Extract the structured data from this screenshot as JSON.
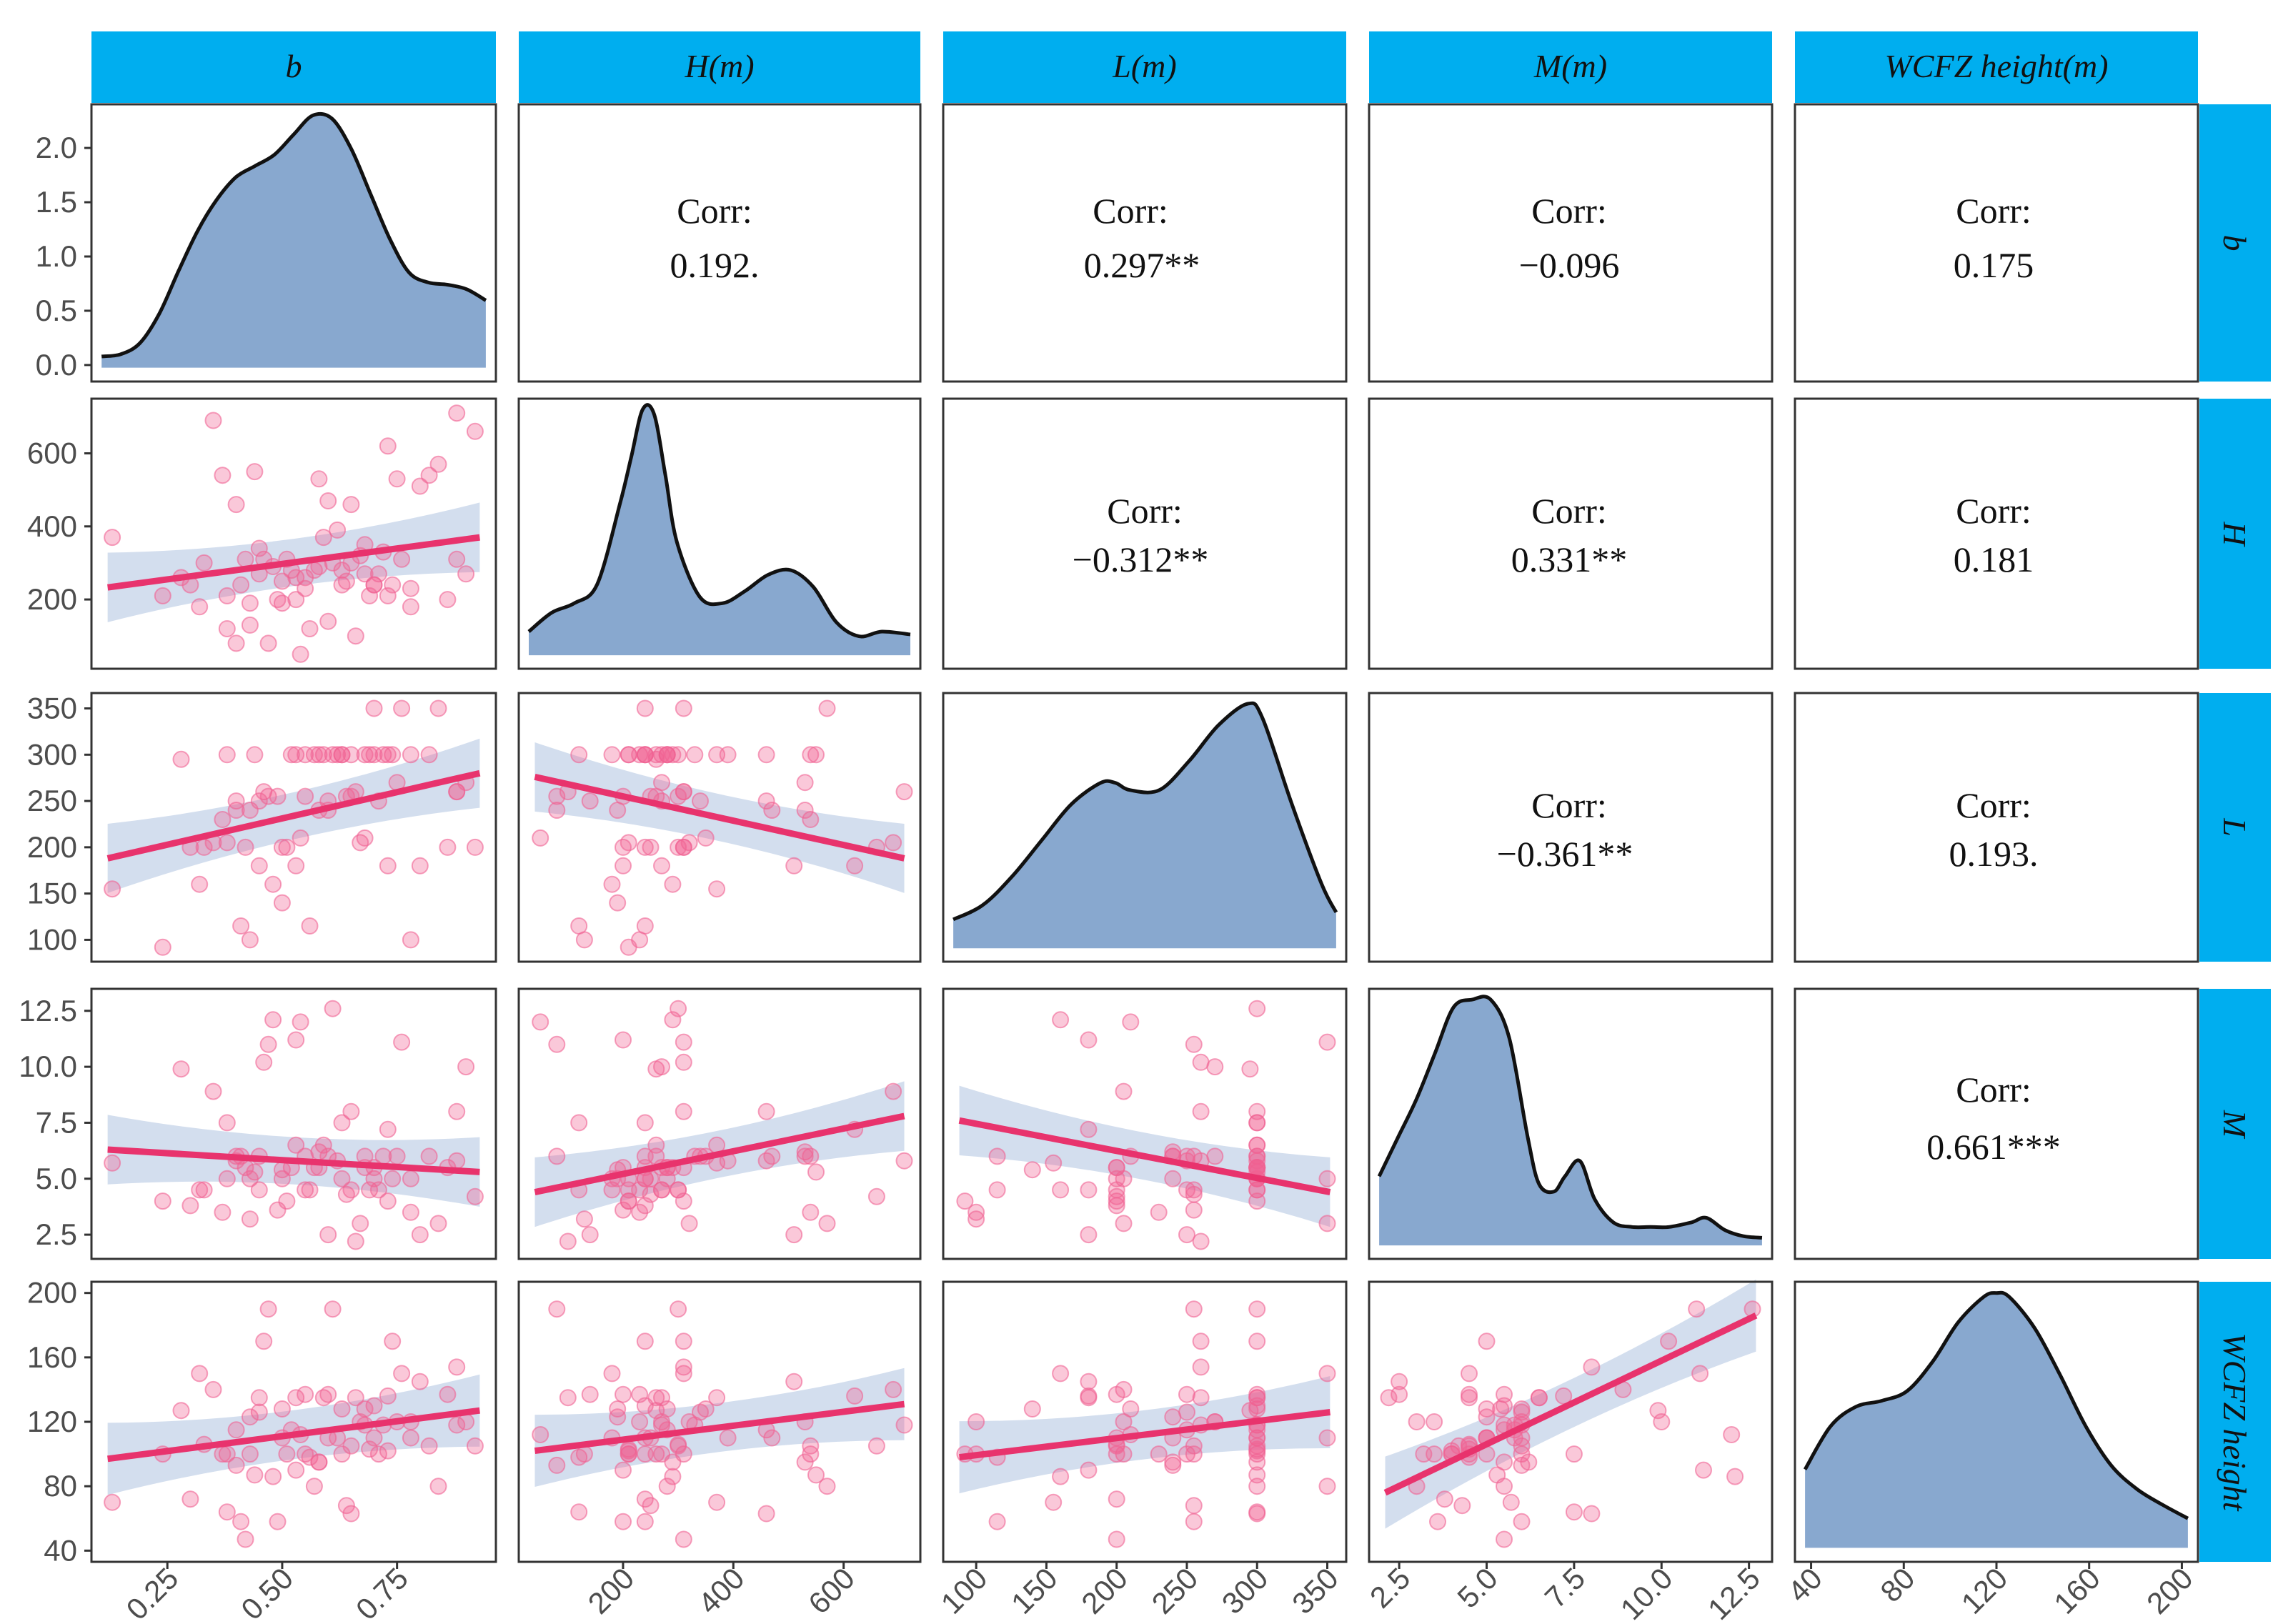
{
  "colors": {
    "strip": "#00aeef",
    "density_fill": "#88a8cf",
    "density_stroke": "#111111",
    "point": "#f06292",
    "line": "#e8336d",
    "ribbon": "#c8d6ea",
    "panel_border": "#333333"
  },
  "chart_data": {
    "type": "scatter",
    "layout": "pairs-plot (5 x 5 matrix)",
    "variables": [
      "b",
      "H",
      "L",
      "M",
      "WCFZ height"
    ],
    "column_labels": [
      "b",
      "H(m)",
      "L(m)",
      "M(m)",
      "WCFZ height(m)"
    ],
    "row_labels": [
      "b",
      "H",
      "L",
      "M",
      "WCFZ height"
    ],
    "corr_label": "Corr:",
    "correlations": [
      {
        "row": 0,
        "col": 1,
        "value": "0.192."
      },
      {
        "row": 0,
        "col": 2,
        "value": "0.297**"
      },
      {
        "row": 0,
        "col": 3,
        "value": "−0.096"
      },
      {
        "row": 0,
        "col": 4,
        "value": "0.175"
      },
      {
        "row": 1,
        "col": 2,
        "value": "−0.312**"
      },
      {
        "row": 1,
        "col": 3,
        "value": "0.331**"
      },
      {
        "row": 1,
        "col": 4,
        "value": "0.181"
      },
      {
        "row": 2,
        "col": 3,
        "value": "−0.361**"
      },
      {
        "row": 2,
        "col": 4,
        "value": "0.193."
      },
      {
        "row": 3,
        "col": 4,
        "value": "0.661***"
      }
    ],
    "axes": {
      "x": [
        {
          "range": [
            0.12,
            0.93
          ],
          "ticks": [
            0.25,
            0.5,
            0.75
          ],
          "tick_labels": [
            "0.25",
            "0.50",
            "0.75"
          ]
        },
        {
          "range": [
            40,
            710
          ],
          "ticks": [
            200,
            400,
            600
          ],
          "tick_labels": [
            "200",
            "400",
            "600"
          ]
        },
        {
          "range": [
            88,
            352
          ],
          "ticks": [
            100,
            150,
            200,
            250,
            300,
            350
          ],
          "tick_labels": [
            "100",
            "150",
            "200",
            "250",
            "300",
            "350"
          ]
        },
        {
          "range": [
            2.1,
            12.7
          ],
          "ticks": [
            2.5,
            5.0,
            7.5,
            10.0,
            12.5
          ],
          "tick_labels": [
            "2.5",
            "5.0",
            "7.5",
            "10.0",
            "12.5"
          ]
        },
        {
          "range": [
            40,
            200
          ],
          "ticks": [
            40,
            80,
            120,
            160,
            200
          ],
          "tick_labels": [
            "40",
            "80",
            "120",
            "160",
            "200"
          ]
        }
      ],
      "y": [
        {
          "range": [
            -0.05,
            2.3
          ],
          "ticks": [
            0.0,
            0.5,
            1.0,
            1.5,
            2.0
          ],
          "tick_labels": [
            "0.0",
            "0.5",
            "1.0",
            "1.5",
            "2.0"
          ]
        },
        {
          "range": [
            40,
            720
          ],
          "ticks": [
            200,
            400,
            600
          ],
          "tick_labels": [
            "200",
            "400",
            "600"
          ]
        },
        {
          "range": [
            88,
            355
          ],
          "ticks": [
            100,
            150,
            200,
            250,
            300,
            350
          ],
          "tick_labels": [
            "100",
            "150",
            "200",
            "250",
            "300",
            "350"
          ]
        },
        {
          "range": [
            1.9,
            13.0
          ],
          "ticks": [
            2.5,
            5.0,
            7.5,
            10.0,
            12.5
          ],
          "tick_labels": [
            "2.5",
            "5.0",
            "7.5",
            "10.0",
            "12.5"
          ]
        },
        {
          "range": [
            40,
            200
          ],
          "ticks": [
            40,
            80,
            120,
            160,
            200
          ],
          "tick_labels": [
            "40",
            "80",
            "120",
            "160",
            "200"
          ]
        }
      ]
    },
    "density": [
      {
        "x": [
          0.13,
          0.17,
          0.21,
          0.25,
          0.29,
          0.33,
          0.37,
          0.41,
          0.45,
          0.49,
          0.53,
          0.57,
          0.61,
          0.65,
          0.69,
          0.73,
          0.77,
          0.81,
          0.85,
          0.89,
          0.93
        ],
        "y": [
          0.1,
          0.12,
          0.22,
          0.48,
          0.86,
          1.22,
          1.5,
          1.7,
          1.8,
          1.9,
          2.08,
          2.25,
          2.22,
          1.95,
          1.55,
          1.15,
          0.85,
          0.76,
          0.74,
          0.7,
          0.6
        ]
      },
      {
        "x": [
          40,
          80,
          120,
          160,
          200,
          220,
          240,
          260,
          280,
          300,
          340,
          380,
          420,
          460,
          500,
          540,
          580,
          620,
          660,
          710
        ],
        "y": [
          0.25,
          0.45,
          0.55,
          0.75,
          1.6,
          2.1,
          2.6,
          2.55,
          1.9,
          1.2,
          0.62,
          0.55,
          0.68,
          0.85,
          0.9,
          0.72,
          0.35,
          0.2,
          0.25,
          0.22
        ]
      },
      {
        "x": [
          90,
          110,
          130,
          150,
          170,
          190,
          200,
          210,
          230,
          250,
          270,
          290,
          300,
          320,
          340,
          350
        ],
        "y": [
          0.2,
          0.3,
          0.5,
          0.75,
          1.0,
          1.15,
          1.15,
          1.1,
          1.1,
          1.3,
          1.55,
          1.7,
          1.6,
          1.0,
          0.45,
          0.25
        ]
      },
      {
        "x": [
          2.2,
          2.7,
          3.2,
          3.7,
          4.2,
          4.7,
          5.2,
          5.7,
          6.2,
          6.5,
          6.9,
          7.2,
          7.6,
          8.0,
          8.5,
          9.0,
          9.5,
          10.0,
          10.6,
          11.0,
          11.5,
          12.0,
          12.5
        ],
        "y": [
          0.45,
          0.7,
          0.95,
          1.25,
          1.55,
          1.6,
          1.6,
          1.35,
          0.7,
          0.4,
          0.35,
          0.45,
          0.55,
          0.3,
          0.15,
          0.12,
          0.12,
          0.12,
          0.15,
          0.18,
          0.1,
          0.06,
          0.05
        ]
      },
      {
        "x": [
          45,
          55,
          65,
          75,
          85,
          95,
          105,
          115,
          120,
          125,
          135,
          145,
          155,
          165,
          175,
          185,
          195
        ],
        "y": [
          0.4,
          0.62,
          0.72,
          0.75,
          0.8,
          0.95,
          1.15,
          1.28,
          1.3,
          1.28,
          1.12,
          0.88,
          0.62,
          0.42,
          0.3,
          0.22,
          0.15
        ]
      }
    ],
    "observations": {
      "b": [
        0.13,
        0.24,
        0.28,
        0.3,
        0.32,
        0.35,
        0.37,
        0.38,
        0.4,
        0.4,
        0.41,
        0.42,
        0.43,
        0.44,
        0.45,
        0.46,
        0.47,
        0.48,
        0.49,
        0.5,
        0.51,
        0.52,
        0.53,
        0.54,
        0.55,
        0.56,
        0.57,
        0.58,
        0.59,
        0.6,
        0.61,
        0.62,
        0.63,
        0.64,
        0.65,
        0.66,
        0.67,
        0.68,
        0.69,
        0.7,
        0.71,
        0.72,
        0.73,
        0.74,
        0.76,
        0.78,
        0.8,
        0.82,
        0.84,
        0.86,
        0.88,
        0.9,
        0.92,
        0.45,
        0.5,
        0.55,
        0.6,
        0.65,
        0.7,
        0.75,
        0.38,
        0.58,
        0.68,
        0.78,
        0.88,
        0.33,
        0.43,
        0.53,
        0.63,
        0.73
      ],
      "H": [
        370,
        210,
        260,
        240,
        180,
        690,
        540,
        120,
        460,
        80,
        240,
        310,
        130,
        550,
        270,
        310,
        80,
        290,
        200,
        190,
        310,
        280,
        200,
        50,
        260,
        120,
        280,
        530,
        370,
        140,
        300,
        390,
        240,
        250,
        460,
        100,
        320,
        270,
        210,
        240,
        270,
        330,
        620,
        240,
        310,
        230,
        510,
        540,
        570,
        200,
        310,
        270,
        660,
        340,
        250,
        230,
        470,
        300,
        240,
        530,
        210,
        290,
        350,
        180,
        710,
        300,
        190,
        260,
        280,
        210
      ],
      "L": [
        155,
        92,
        295,
        200,
        160,
        205,
        230,
        300,
        250,
        240,
        115,
        200,
        100,
        300,
        180,
        260,
        255,
        160,
        255,
        140,
        200,
        300,
        180,
        210,
        255,
        115,
        300,
        240,
        300,
        250,
        300,
        300,
        300,
        255,
        300,
        260,
        205,
        300,
        300,
        350,
        250,
        300,
        180,
        300,
        350,
        100,
        180,
        300,
        350,
        200,
        260,
        270,
        200,
        250,
        200,
        300,
        240,
        255,
        300,
        270,
        205,
        300,
        210,
        300,
        260,
        200,
        240,
        300,
        300,
        300
      ],
      "M": [
        5.7,
        4.0,
        9.9,
        3.8,
        4.5,
        8.9,
        3.5,
        7.5,
        5.8,
        6.0,
        6.0,
        5.5,
        3.2,
        5.3,
        4.5,
        10.2,
        11.0,
        12.1,
        3.6,
        5.4,
        4.0,
        5.5,
        11.2,
        12.0,
        6.0,
        4.5,
        5.5,
        6.2,
        6.5,
        2.5,
        12.6,
        5.8,
        7.5,
        4.3,
        8.0,
        2.2,
        3.0,
        5.5,
        4.5,
        5.0,
        4.5,
        6.0,
        7.2,
        5.0,
        11.1,
        3.5,
        2.5,
        6.0,
        3.0,
        5.5,
        8.0,
        10.0,
        4.2,
        6.0,
        5.0,
        4.5,
        6.0,
        4.5,
        5.5,
        6.0,
        5.0,
        5.5,
        6.0,
        5.0,
        5.8,
        4.5,
        5.0,
        6.5,
        5.0,
        4.0
      ],
      "WCFZ height": [
        70,
        100,
        127,
        72,
        150,
        140,
        100,
        64,
        115,
        93,
        58,
        47,
        100,
        87,
        135,
        170,
        190,
        86,
        58,
        128,
        100,
        115,
        90,
        112,
        100,
        98,
        80,
        95,
        135,
        137,
        190,
        110,
        100,
        68,
        63,
        135,
        120,
        118,
        103,
        110,
        100,
        118,
        136,
        170,
        150,
        120,
        145,
        105,
        80,
        137,
        154,
        120,
        105,
        126,
        110,
        137,
        110,
        105,
        130,
        120,
        100,
        95,
        128,
        110,
        118,
        106,
        123,
        135,
        128,
        102
      ]
    },
    "regression": [
      {
        "row": 1,
        "col": 0,
        "y_at_xmin": 233,
        "y_at_xmax": 370
      },
      {
        "row": 2,
        "col": 0,
        "y_at_xmin": 188,
        "y_at_xmax": 280
      },
      {
        "row": 2,
        "col": 1,
        "y_at_xmin": 276,
        "y_at_xmax": 188
      },
      {
        "row": 3,
        "col": 0,
        "y_at_xmin": 6.3,
        "y_at_xmax": 5.3
      },
      {
        "row": 3,
        "col": 1,
        "y_at_xmin": 4.4,
        "y_at_xmax": 7.8
      },
      {
        "row": 3,
        "col": 2,
        "y_at_xmin": 7.6,
        "y_at_xmax": 4.4
      },
      {
        "row": 4,
        "col": 0,
        "y_at_xmin": 97,
        "y_at_xmax": 127
      },
      {
        "row": 4,
        "col": 1,
        "y_at_xmin": 102,
        "y_at_xmax": 131
      },
      {
        "row": 4,
        "col": 2,
        "y_at_xmin": 98,
        "y_at_xmax": 126
      },
      {
        "row": 4,
        "col": 3,
        "y_at_xmin": 76,
        "y_at_xmax": 186
      }
    ],
    "grid": false,
    "legend": "none"
  }
}
